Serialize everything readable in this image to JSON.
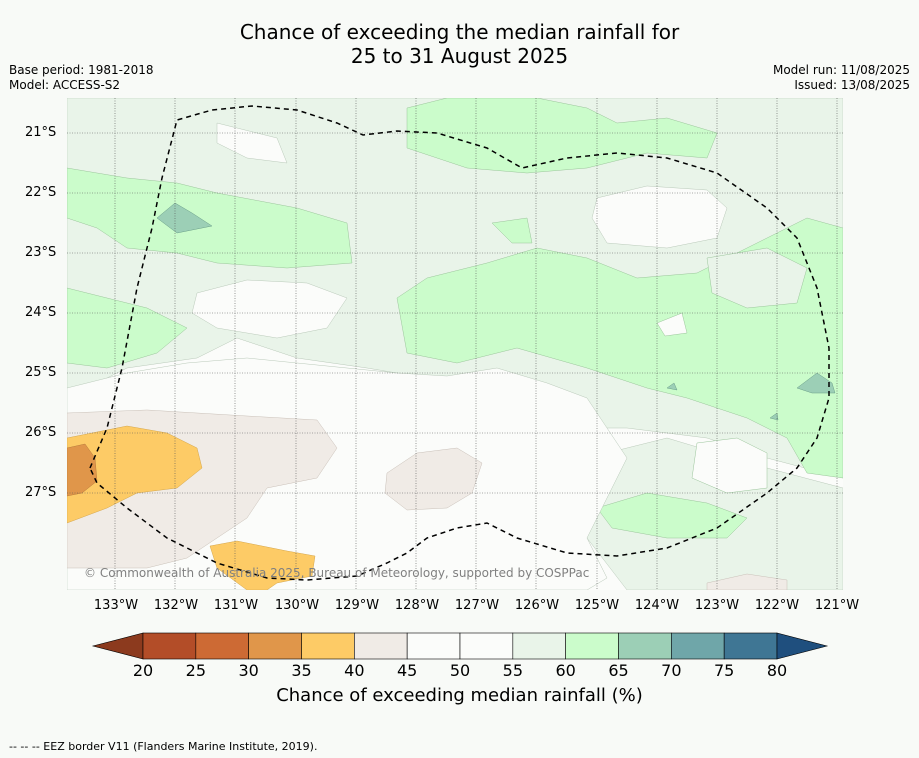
{
  "header": {
    "title_line1": "Chance of exceeding the median rainfall for",
    "title_line2": "25 to 31 August 2025",
    "base_period": "Base period: 1981-2018",
    "model": "Model: ACCESS-S2",
    "model_run": "Model run: 11/08/2025",
    "issued": "Issued: 13/08/2025"
  },
  "map": {
    "copyright": "© Commonwealth of Australia 2025, Bureau of Meteorology, supported by COSPPac",
    "longitude_labels": [
      "133°W",
      "132°W",
      "131°W",
      "130°W",
      "129°W",
      "128°W",
      "127°W",
      "126°W",
      "125°W",
      "124°W",
      "123°W",
      "122°W",
      "121°W"
    ],
    "latitude_labels": [
      "21°S",
      "22°S",
      "23°S",
      "24°S",
      "25°S",
      "26°S",
      "27°S"
    ],
    "eez_border_style": "dashed",
    "category_colors": {
      "20-25": "#b34d28",
      "25-30": "#cd6a34",
      "30-35": "#e0964a",
      "35-40": "#fdcb66",
      "40-45": "#f0ebe6",
      "45-55": "#fbfcfa",
      "55-60": "#e9f4e9",
      "60-65": "#cbfccb",
      "65-70": "#9ccfb6",
      "70-75": "#6fa6a9",
      "75-80": "#3f7694"
    }
  },
  "colorbar": {
    "ticks": [
      "20",
      "25",
      "30",
      "35",
      "40",
      "45",
      "50",
      "55",
      "60",
      "65",
      "70",
      "75",
      "80"
    ],
    "colors": [
      "#b34d28",
      "#cd6a34",
      "#e0964a",
      "#fdcb66",
      "#f0ebe6",
      "#fbfcfa",
      "#fbfcfa",
      "#e9f4e9",
      "#cbfccb",
      "#9ccfb6",
      "#6fa6a9",
      "#3f7694"
    ],
    "low_extend_color": "#8c3a1e",
    "high_extend_color": "#1f4f7e",
    "label": "Chance of exceeding median rainfall (%)"
  },
  "footer": {
    "legend_text": "--  --  -- EEZ border V11 (Flanders Marine Institute, 2019)."
  }
}
